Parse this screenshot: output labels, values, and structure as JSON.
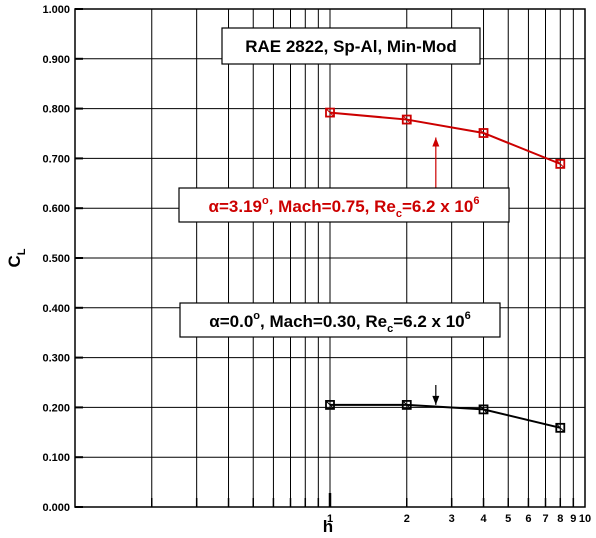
{
  "chart_data": {
    "type": "line",
    "title": "RAE 2822, Sp-Al, Min-Mod",
    "xlabel": "h",
    "ylabel_main": "C",
    "ylabel_sub": "L",
    "xscale": "log",
    "xlim": [
      0.1,
      10
    ],
    "ylim": [
      0,
      1
    ],
    "grid": true,
    "x_ticks_major": [
      "1",
      "10"
    ],
    "x_ticks_minor": [
      "2",
      "3",
      "4",
      "5",
      "6",
      "7",
      "8",
      "9"
    ],
    "y_ticks": [
      "0.000",
      "0.100",
      "0.200",
      "0.300",
      "0.400",
      "0.500",
      "0.600",
      "0.700",
      "0.800",
      "0.900",
      "1.000"
    ],
    "series": [
      {
        "color": "#cc0000",
        "marker": "square",
        "x": [
          1,
          2,
          4,
          8
        ],
        "y": [
          0.792,
          0.778,
          0.751,
          0.689
        ]
      },
      {
        "color": "#000000",
        "marker": "square",
        "x": [
          1,
          2,
          4,
          8
        ],
        "y": [
          0.205,
          0.205,
          0.196,
          0.159
        ]
      }
    ],
    "annotations": [
      {
        "color": "#cc0000",
        "alpha_part": "α=3.19",
        "alpha_sup": "o",
        "mach_part": ", Mach=0.75, Re",
        "re_sub": "c",
        "re_value": "=6.2 x 10",
        "re_sup": "6",
        "arrow_from": [
          2.6,
          0.625
        ],
        "arrow_to": [
          2.6,
          0.742
        ]
      },
      {
        "color": "#000000",
        "alpha_part": "α=0.0",
        "alpha_sup": "o",
        "mach_part": ", Mach=0.30, Re",
        "re_sub": "c",
        "re_value": "=6.2 x 10",
        "re_sup": "6",
        "arrow_from": [
          2.6,
          0.245
        ],
        "arrow_to": [
          2.6,
          0.205
        ]
      }
    ]
  }
}
